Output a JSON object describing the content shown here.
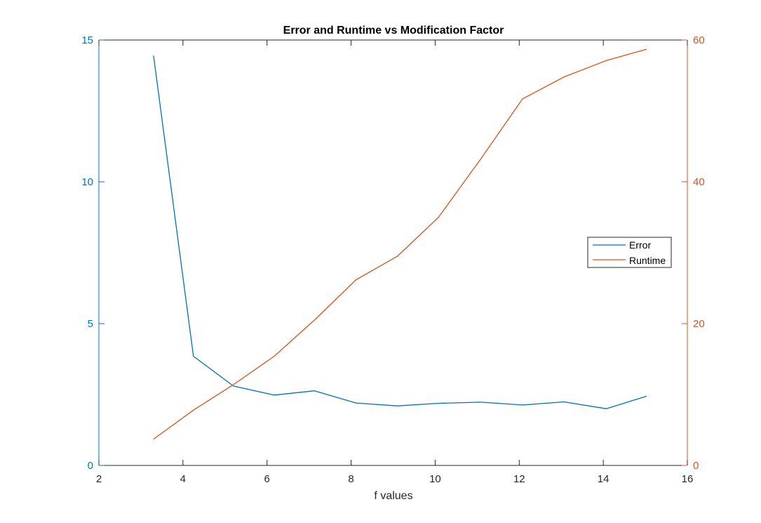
{
  "chart_data": {
    "type": "line",
    "title": "Error and Runtime vs Modification Factor",
    "xlabel": "f values",
    "ylabel_left": "",
    "ylabel_right": "",
    "xlim": [
      2,
      16
    ],
    "ylim_left": [
      0,
      15
    ],
    "ylim_right": [
      0,
      60
    ],
    "x_ticks": [
      2,
      4,
      6,
      8,
      10,
      12,
      14,
      16
    ],
    "y_left_ticks": [
      0,
      5,
      10,
      15
    ],
    "y_right_ticks": [
      0,
      20,
      40,
      60
    ],
    "grid": false,
    "legend_position": "right",
    "series": [
      {
        "name": "Error",
        "axis": "left",
        "color": "#0072BD",
        "x": [
          3.3,
          4.25,
          5.2,
          6.17,
          7.13,
          8.12,
          9.1,
          10.08,
          11.08,
          12.08,
          13.07,
          14.07,
          15.03
        ],
        "y": [
          14.45,
          3.85,
          2.8,
          2.48,
          2.63,
          2.2,
          2.1,
          2.19,
          2.23,
          2.13,
          2.24,
          2.0,
          2.44
        ]
      },
      {
        "name": "Runtime",
        "axis": "right",
        "color": "#D95319",
        "x": [
          3.3,
          4.25,
          5.2,
          6.17,
          7.13,
          8.12,
          9.1,
          10.08,
          11.08,
          12.08,
          13.07,
          14.07,
          15.03
        ],
        "y": [
          3.7,
          7.8,
          11.4,
          15.4,
          20.5,
          26.2,
          29.5,
          35.0,
          43.2,
          51.7,
          54.8,
          57.1,
          58.7
        ]
      }
    ]
  }
}
